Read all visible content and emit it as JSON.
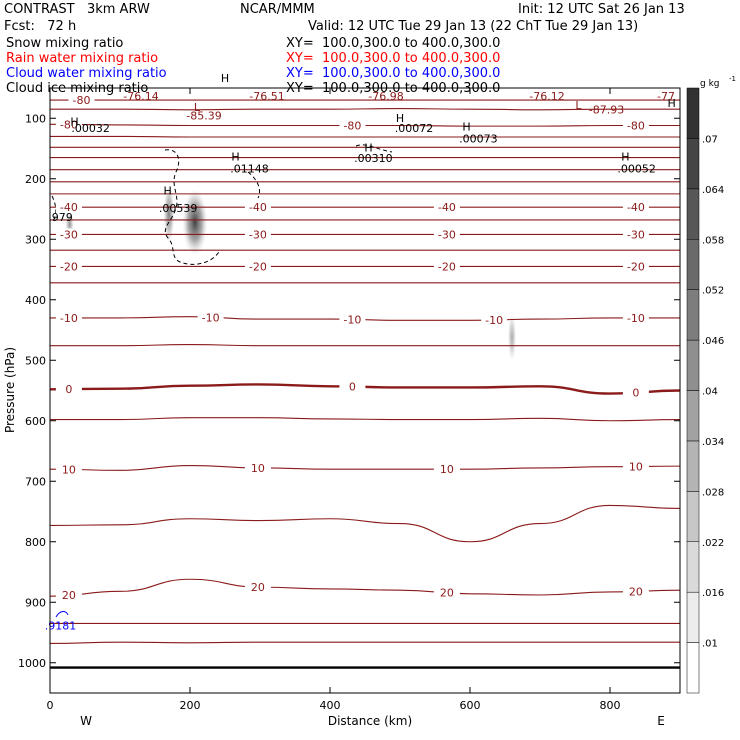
{
  "header": {
    "title_left": "CONTRAST   3km ARW",
    "fcst": "Fcst:   72 h",
    "center": "NCAR/MMM",
    "init": "Init: 12 UTC Sat 26 Jan 13",
    "valid": "Valid: 12 UTC Tue 29 Jan 13 (22 ChT Tue 29 Jan 13)"
  },
  "legend": [
    {
      "name": "Snow mixing ratio",
      "xy": "XY=  100.0,300.0 to 400.0,300.0",
      "color": "#000000"
    },
    {
      "name": "Rain water mixing ratio",
      "xy": "XY=  100.0,300.0 to 400.0,300.0",
      "color": "#ff0000"
    },
    {
      "name": "Cloud water mixing ratio",
      "xy": "XY=  100.0,300.0 to 400.0,300.0",
      "color": "#0000ff"
    },
    {
      "name": "Cloud ice mixing ratio",
      "xy": "XY=  100.0,300.0 to 400.0,300.0",
      "color": "#000000"
    }
  ],
  "chart_data": {
    "type": "contour",
    "xlabel": "Distance (km)",
    "ylabel": "Pressure (hPa)",
    "xlim": [
      0,
      900
    ],
    "ylim": [
      1050,
      50
    ],
    "y_scale": "linear",
    "x_ticks": [
      0,
      200,
      400,
      600,
      800
    ],
    "y_ticks": [
      100,
      200,
      300,
      400,
      500,
      600,
      700,
      800,
      900,
      1000
    ],
    "endpoint_labels": {
      "left": "W",
      "right": "E"
    },
    "shading_field": "Snow mixing ratio",
    "colorbar": {
      "unit": "g kg",
      "unit_exp": "-1",
      "levels": [
        ".01",
        ".016",
        ".022",
        ".028",
        ".034",
        ".04",
        ".046",
        ".052",
        ".058",
        ".064",
        ".07"
      ]
    },
    "temperature_contours": [
      {
        "value": -80,
        "pressure": [
          70,
          70,
          70,
          70,
          70,
          70,
          70,
          70,
          70,
          70
        ],
        "labels": [
          "-80"
        ]
      },
      {
        "value": -75,
        "pressure": [
          85,
          85,
          86,
          85,
          85,
          84,
          85,
          86,
          85,
          85
        ],
        "labels": []
      },
      {
        "value": -80,
        "pressure": [
          110,
          111,
          112,
          112,
          112,
          112,
          113,
          113,
          112,
          112
        ],
        "labels": [
          "-80",
          "-80",
          "-80"
        ]
      },
      {
        "value": -72,
        "pressure": [
          130,
          130,
          131,
          131,
          131,
          131,
          131,
          131,
          131,
          131
        ],
        "labels": []
      },
      {
        "value": -68,
        "pressure": [
          148,
          148,
          148,
          148,
          148,
          148,
          148,
          148,
          148,
          148
        ],
        "labels": []
      },
      {
        "value": -64,
        "pressure": [
          165,
          165,
          165,
          165,
          165,
          165,
          165,
          165,
          165,
          165
        ],
        "labels": []
      },
      {
        "value": -60,
        "pressure": [
          185,
          185,
          185,
          185,
          185,
          185,
          185,
          185,
          185,
          185
        ],
        "labels": []
      },
      {
        "value": -55,
        "pressure": [
          205,
          205,
          205,
          205,
          205,
          205,
          205,
          205,
          205,
          205
        ],
        "labels": []
      },
      {
        "value": -50,
        "pressure": [
          225,
          225,
          225,
          225,
          225,
          225,
          225,
          225,
          225,
          225
        ],
        "labels": []
      },
      {
        "value": -40,
        "pressure": [
          247,
          247,
          247,
          247,
          247,
          247,
          247,
          247,
          247,
          247
        ],
        "labels": [
          "-40",
          "-40",
          "-40",
          "-40"
        ]
      },
      {
        "value": -35,
        "pressure": [
          268,
          268,
          268,
          268,
          268,
          268,
          268,
          268,
          268,
          268
        ],
        "labels": []
      },
      {
        "value": -30,
        "pressure": [
          292,
          292,
          292,
          292,
          292,
          292,
          292,
          292,
          292,
          292
        ],
        "labels": [
          "-30",
          "-30",
          "-30",
          "-30"
        ]
      },
      {
        "value": -25,
        "pressure": [
          318,
          318,
          318,
          318,
          318,
          318,
          318,
          318,
          318,
          318
        ],
        "labels": []
      },
      {
        "value": -20,
        "pressure": [
          345,
          345,
          345,
          345,
          345,
          345,
          345,
          345,
          345,
          345
        ],
        "labels": [
          "-20",
          "-20",
          "-20",
          "-20"
        ]
      },
      {
        "value": -15,
        "pressure": [
          372,
          372,
          372,
          372,
          372,
          372,
          372,
          372,
          372,
          372
        ],
        "labels": []
      },
      {
        "value": -10,
        "pressure": [
          430,
          430,
          428,
          432,
          432,
          434,
          434,
          432,
          430,
          430
        ],
        "labels": [
          "-10",
          "-10",
          "-10",
          "-10",
          "-10"
        ]
      },
      {
        "value": -5,
        "pressure": [
          476,
          476,
          474,
          476,
          476,
          476,
          476,
          476,
          476,
          476
        ],
        "labels": []
      },
      {
        "value": 0,
        "pressure": [
          548,
          547,
          542,
          540,
          543,
          545,
          545,
          543,
          555,
          550
        ],
        "labels": [
          "0",
          "0",
          "0"
        ]
      },
      {
        "value": 5,
        "pressure": [
          598,
          598,
          595,
          595,
          597,
          598,
          598,
          596,
          600,
          598
        ],
        "labels": []
      },
      {
        "value": 10,
        "pressure": [
          680,
          682,
          674,
          678,
          680,
          680,
          680,
          678,
          676,
          675
        ],
        "labels": [
          "10",
          "10",
          "10",
          "10"
        ]
      },
      {
        "value": 15,
        "pressure": [
          773,
          772,
          762,
          765,
          762,
          770,
          800,
          770,
          740,
          745
        ],
        "labels": []
      },
      {
        "value": 20,
        "pressure": [
          890,
          882,
          862,
          875,
          878,
          880,
          886,
          888,
          883,
          880
        ],
        "labels": [
          "20",
          "20",
          "20",
          "20"
        ]
      },
      {
        "value": 25,
        "pressure": [
          935,
          935,
          935,
          935,
          935,
          935,
          935,
          935,
          935,
          935
        ],
        "labels": []
      },
      {
        "value": 30,
        "pressure": [
          968,
          966,
          967,
          966,
          966,
          966,
          966,
          966,
          966,
          966
        ],
        "labels": []
      }
    ],
    "contour_x": [
      0,
      100,
      200,
      300,
      400,
      500,
      600,
      700,
      800,
      900
    ],
    "surface_pressure": 1008,
    "maxima_labels": [
      {
        "text": "-76.14",
        "x": 130,
        "p": 70
      },
      {
        "text": "-76.51",
        "x": 310,
        "p": 70
      },
      {
        "text": "-76.98",
        "x": 480,
        "p": 70
      },
      {
        "text": "-76.12",
        "x": 710,
        "p": 70
      },
      {
        "text": "-77",
        "x": 880,
        "p": 70
      },
      {
        "text": "-85.39",
        "x": 220,
        "p": 102
      },
      {
        "text": "-87.93",
        "x": 795,
        "p": 92
      },
      {
        "text": ".00032",
        "x": 58,
        "p": 123
      },
      {
        "text": ".00072",
        "x": 520,
        "p": 123
      },
      {
        "text": ".00073",
        "x": 612,
        "p": 140
      },
      {
        "text": ".00310",
        "x": 462,
        "p": 172
      },
      {
        "text": ".01148",
        "x": 285,
        "p": 190
      },
      {
        "text": ".00052",
        "x": 838,
        "p": 190
      },
      {
        "text": ".00539",
        "x": 183,
        "p": 255
      },
      {
        "text": ".979",
        "x": 15,
        "p": 270
      },
      {
        "text": ".9181",
        "x": 15,
        "p": 945
      }
    ],
    "marker_labels": [
      {
        "text": "H",
        "x": 250,
        "p": 40
      },
      {
        "text": "H",
        "x": 35,
        "p": 112
      },
      {
        "text": "L",
        "x": 210,
        "p": 88
      },
      {
        "text": "L",
        "x": 755,
        "p": 85
      },
      {
        "text": "H",
        "x": 888,
        "p": 81
      },
      {
        "text": "H",
        "x": 500,
        "p": 106
      },
      {
        "text": "H",
        "x": 595,
        "p": 120
      },
      {
        "text": "H",
        "x": 455,
        "p": 155
      },
      {
        "text": "H",
        "x": 265,
        "p": 170
      },
      {
        "text": "H",
        "x": 822,
        "p": 170
      },
      {
        "text": "H",
        "x": 168,
        "p": 226
      }
    ],
    "snow_blobs": [
      {
        "x": 207,
        "p": 272,
        "rx": 18,
        "rp": 55,
        "intensity": 0.9
      },
      {
        "x": 170,
        "p": 258,
        "rx": 8,
        "rp": 50,
        "intensity": 0.6
      },
      {
        "x": 28,
        "p": 275,
        "rx": 6,
        "rp": 22,
        "intensity": 0.5
      },
      {
        "x": 660,
        "p": 462,
        "rx": 6,
        "rp": 40,
        "intensity": 0.4
      }
    ]
  }
}
